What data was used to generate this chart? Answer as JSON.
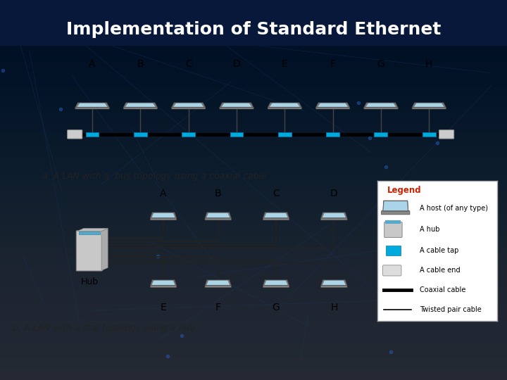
{
  "title": "Implementation of Standard Ethernet",
  "title_color": "#ffffff",
  "title_fontsize": 18,
  "title_fontweight": "bold",
  "bg_top": "#000510",
  "bg_bottom": "#0a1a35",
  "panel_yellow": "#FFE840",
  "caption_a": "a. A LAN with a  bus topology using a coaxial cable",
  "caption_b": "b. A LAN with a star topology using a hub",
  "bus_labels": [
    "A",
    "B",
    "C",
    "D",
    "E",
    "F",
    "G",
    "H"
  ],
  "star_top_labels": [
    "A",
    "B",
    "C",
    "D"
  ],
  "star_bot_labels": [
    "E",
    "F",
    "G",
    "H"
  ],
  "cable_tap_color": "#00AADD",
  "coaxial_lw": 3.5,
  "label_fontsize": 9,
  "caption_fontsize": 9,
  "legend_title_color": "#CC2200"
}
